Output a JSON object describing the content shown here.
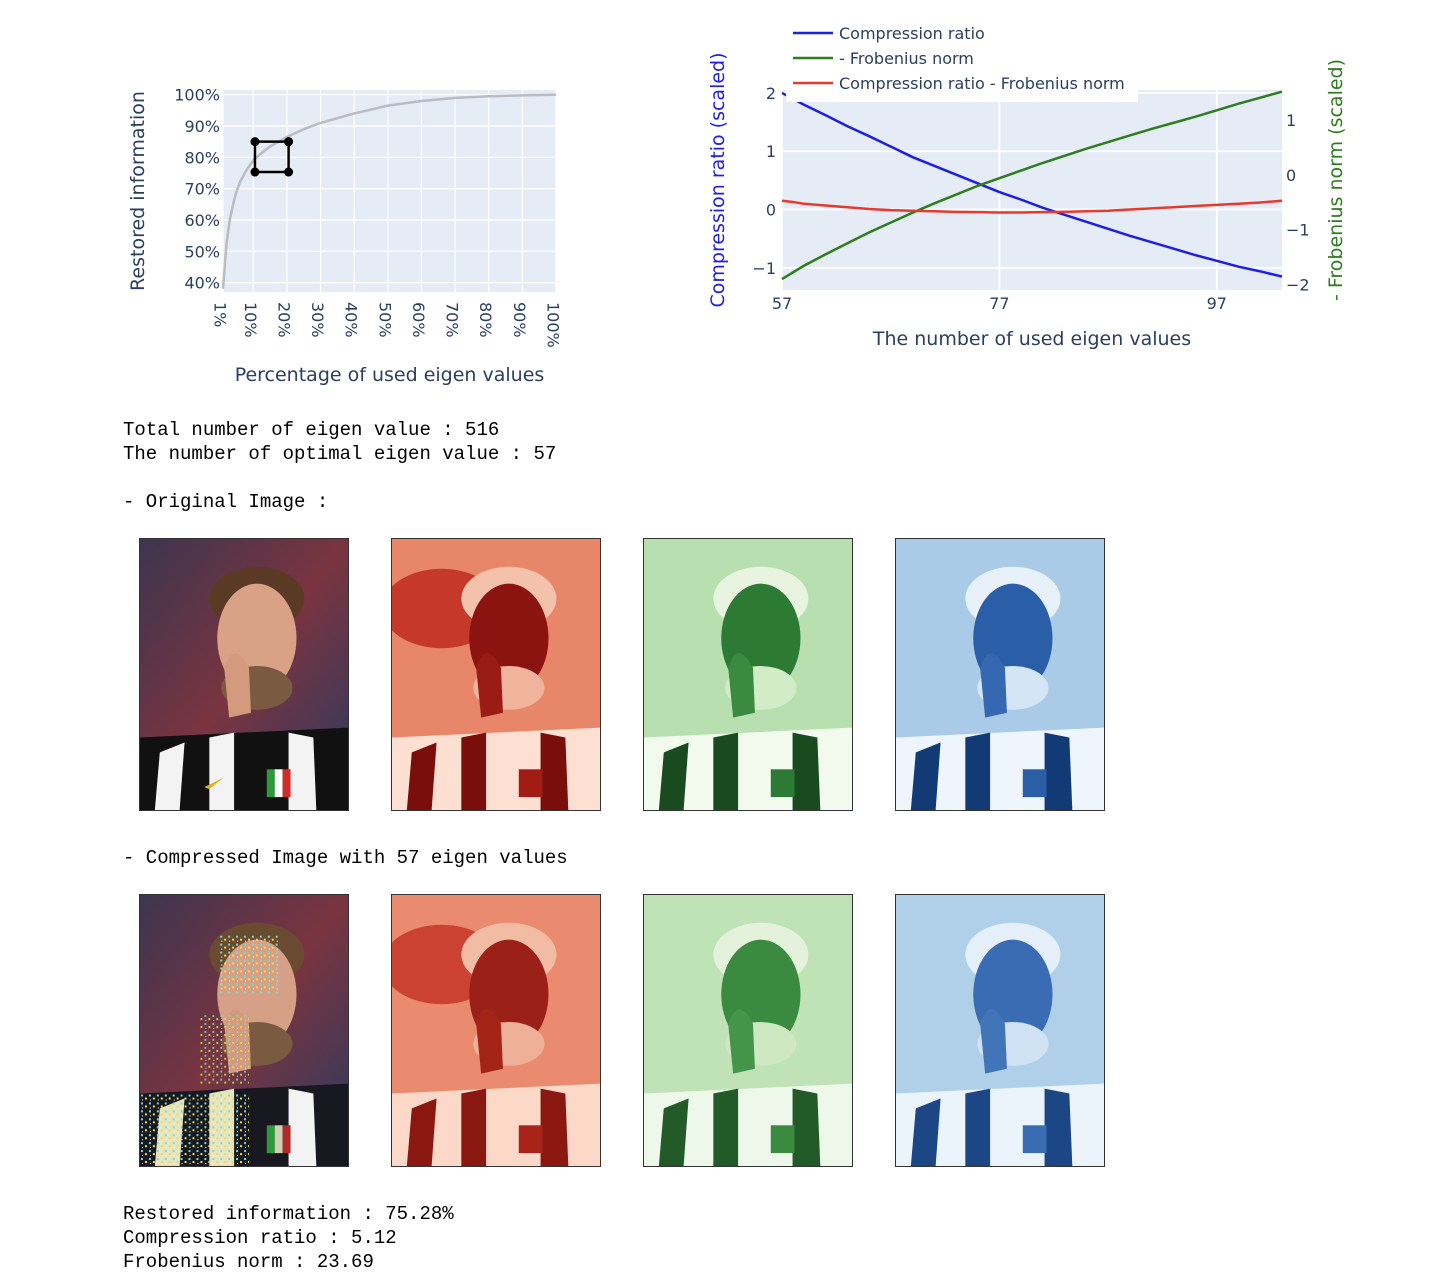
{
  "chart_data": [
    {
      "type": "line",
      "x": [
        1,
        2,
        3,
        4,
        5,
        6,
        8,
        10,
        12,
        15,
        20,
        25,
        30,
        35,
        40,
        50,
        60,
        70,
        80,
        90,
        100
      ],
      "series": [
        {
          "values": [
            38,
            52,
            60,
            65,
            69,
            72,
            76,
            79,
            81,
            83.5,
            86.5,
            89,
            91,
            92.5,
            94,
            96.5,
            98,
            99,
            99.5,
            99.8,
            100
          ]
        }
      ],
      "xlabel": "Percentage of used eigen values",
      "ylabel": "Restored information",
      "x_ticks": [
        "1%",
        "10%",
        "20%",
        "30%",
        "40%",
        "50%",
        "60%",
        "70%",
        "80%",
        "90%",
        "100%"
      ],
      "x_tick_values": [
        1,
        10,
        20,
        30,
        40,
        50,
        60,
        70,
        80,
        90,
        100
      ],
      "y_ticks": [
        "40%",
        "50%",
        "60%",
        "70%",
        "80%",
        "90%",
        "100%"
      ],
      "y_tick_values": [
        40,
        50,
        60,
        70,
        80,
        90,
        100
      ],
      "xlim": [
        1,
        100
      ],
      "ylim": [
        37,
        101.5
      ],
      "grid": true,
      "line_color": "#b9bcc3",
      "marker_box": {
        "x": [
          10.5,
          20.5
        ],
        "y": [
          75.3,
          85
        ]
      }
    },
    {
      "type": "line",
      "x": [
        57,
        58,
        59,
        61,
        63,
        65,
        67,
        69,
        71,
        73,
        75,
        77,
        79,
        81,
        83,
        85,
        87,
        89,
        91,
        93,
        95,
        97,
        99,
        101,
        103
      ],
      "series": [
        {
          "name": "Compression ratio",
          "axis": "left",
          "color": "#1f1fe0",
          "values": [
            2.0,
            1.9,
            1.8,
            1.62,
            1.43,
            1.26,
            1.08,
            0.9,
            0.75,
            0.6,
            0.45,
            0.3,
            0.17,
            0.03,
            -0.09,
            -0.21,
            -0.33,
            -0.45,
            -0.56,
            -0.67,
            -0.78,
            -0.88,
            -0.98,
            -1.06,
            -1.15
          ]
        },
        {
          "name": "- Frobenius norm",
          "axis": "right",
          "color": "#2e7d1e",
          "values": [
            -1.9,
            -1.78,
            -1.66,
            -1.45,
            -1.25,
            -1.05,
            -0.87,
            -0.69,
            -0.52,
            -0.36,
            -0.2,
            -0.06,
            0.08,
            0.22,
            0.35,
            0.48,
            0.6,
            0.72,
            0.84,
            0.95,
            1.06,
            1.18,
            1.3,
            1.41,
            1.52
          ]
        },
        {
          "name": "Compression ratio - Frobenius norm",
          "axis": "left",
          "color": "#e8392e",
          "values": [
            0.15,
            0.13,
            0.1,
            0.07,
            0.04,
            0.01,
            -0.01,
            -0.02,
            -0.03,
            -0.04,
            -0.045,
            -0.05,
            -0.05,
            -0.045,
            -0.04,
            -0.03,
            -0.02,
            0.0,
            0.02,
            0.04,
            0.06,
            0.08,
            0.1,
            0.12,
            0.15
          ]
        }
      ],
      "xlabel": "The number of used eigen values",
      "ylabel": "Compression ratio (scaled)",
      "y2label": "- Frobenius norm (scaled)",
      "x_ticks": [
        "57",
        "77",
        "97"
      ],
      "x_tick_values": [
        57,
        77,
        97
      ],
      "y_ticks": [
        "2",
        "1",
        "0",
        "−1"
      ],
      "y_tick_values": [
        2,
        1,
        0,
        -1
      ],
      "y2_ticks": [
        "1",
        "0",
        "−1",
        "−2"
      ],
      "y2_tick_values": [
        1,
        0,
        -1,
        -2
      ],
      "xlim": [
        57,
        103
      ],
      "ylim": [
        -1.38,
        2.05
      ],
      "y2lim": [
        -2.1,
        1.55
      ],
      "grid": true,
      "legend_position": "top-left"
    }
  ],
  "text_output": {
    "line1": "Total number of eigen value : 516",
    "line2": "The number of optimal eigen value : 57",
    "original_heading": "- Original Image :",
    "compressed_heading": "- Compressed Image with 57 eigen values",
    "result1": "Restored information : 75.28%",
    "result2": "Compression ratio : 5.12",
    "result3": "Frobenius norm : 23.69"
  },
  "colors": {
    "plot_bg": "#e5ecf6",
    "axis_text": "#2a3f5f",
    "left_axis_title": "#1f1fe0",
    "right_axis_title": "#2e7d1e"
  },
  "images": {
    "original_row": [
      "original-color-image",
      "original-red-channel-image",
      "original-green-channel-image",
      "original-blue-channel-image"
    ],
    "compressed_row": [
      "compressed-color-image",
      "compressed-red-channel-image",
      "compressed-green-channel-image",
      "compressed-blue-channel-image"
    ]
  }
}
